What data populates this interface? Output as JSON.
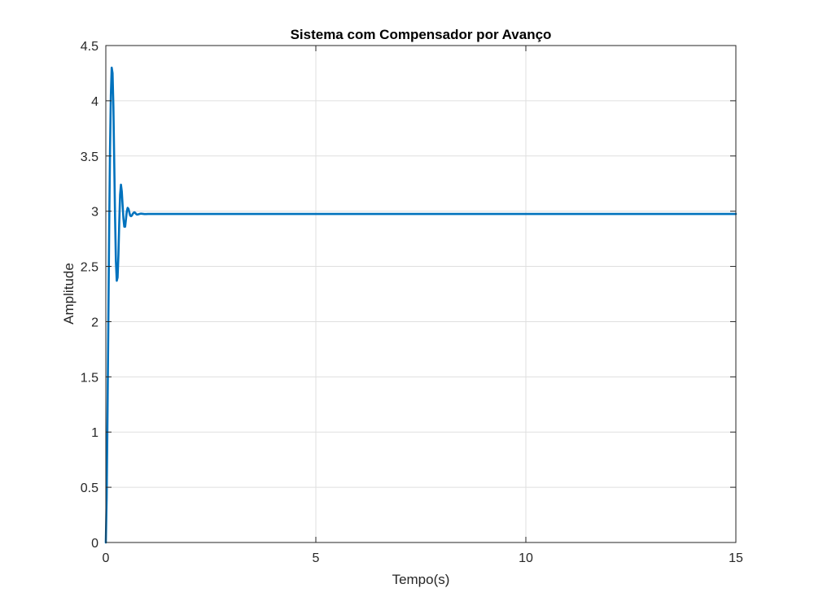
{
  "chart_data": {
    "type": "line",
    "title": "Sistema com Compensador por Avanço",
    "xlabel": "Tempo(s)",
    "ylabel": "Amplitude",
    "xlim": [
      0,
      15
    ],
    "ylim": [
      0,
      4.5
    ],
    "xticks": [
      0,
      5,
      10,
      15
    ],
    "xtick_labels": [
      "0",
      "5",
      "10",
      "15"
    ],
    "yticks": [
      0,
      0.5,
      1,
      1.5,
      2,
      2.5,
      3,
      3.5,
      4,
      4.5
    ],
    "ytick_labels": [
      "0",
      "0.5",
      "1",
      "1.5",
      "2",
      "2.5",
      "3",
      "3.5",
      "4",
      "4.5"
    ],
    "grid": true,
    "line_color": "#0072BD",
    "grid_color": "#dfdfdf",
    "series": [
      {
        "x": [
          0,
          0.02,
          0.04,
          0.06,
          0.08,
          0.1,
          0.12,
          0.14,
          0.16,
          0.18,
          0.2,
          0.22,
          0.24,
          0.26,
          0.28,
          0.3,
          0.32,
          0.34,
          0.36,
          0.38,
          0.4,
          0.42,
          0.44,
          0.46,
          0.48,
          0.5,
          0.52,
          0.54,
          0.56,
          0.58,
          0.6,
          0.62,
          0.64,
          0.66,
          0.68,
          0.7,
          0.72,
          0.74,
          0.76,
          0.8,
          0.84,
          0.88,
          0.92,
          0.96,
          1.0,
          1.05,
          1.1,
          1.2,
          1.3,
          1.4,
          1.5,
          1.6,
          1.8,
          2.0,
          3.0,
          5.0,
          7.5,
          10.0,
          12.5,
          15.0
        ],
        "y": [
          0,
          0.4,
          1.15,
          2.0,
          2.85,
          3.55,
          4.05,
          4.3,
          4.25,
          3.95,
          3.45,
          2.95,
          2.55,
          2.37,
          2.4,
          2.6,
          2.9,
          3.15,
          3.24,
          3.18,
          3.05,
          2.93,
          2.86,
          2.86,
          2.93,
          3.0,
          3.03,
          3.02,
          2.99,
          2.96,
          2.955,
          2.96,
          2.975,
          2.985,
          2.99,
          2.985,
          2.975,
          2.97,
          2.97,
          2.975,
          2.978,
          2.976,
          2.974,
          2.974,
          2.975,
          2.975,
          2.975,
          2.975,
          2.975,
          2.975,
          2.975,
          2.975,
          2.975,
          2.975,
          2.975,
          2.975,
          2.975,
          2.975,
          2.975,
          2.975
        ]
      }
    ]
  }
}
